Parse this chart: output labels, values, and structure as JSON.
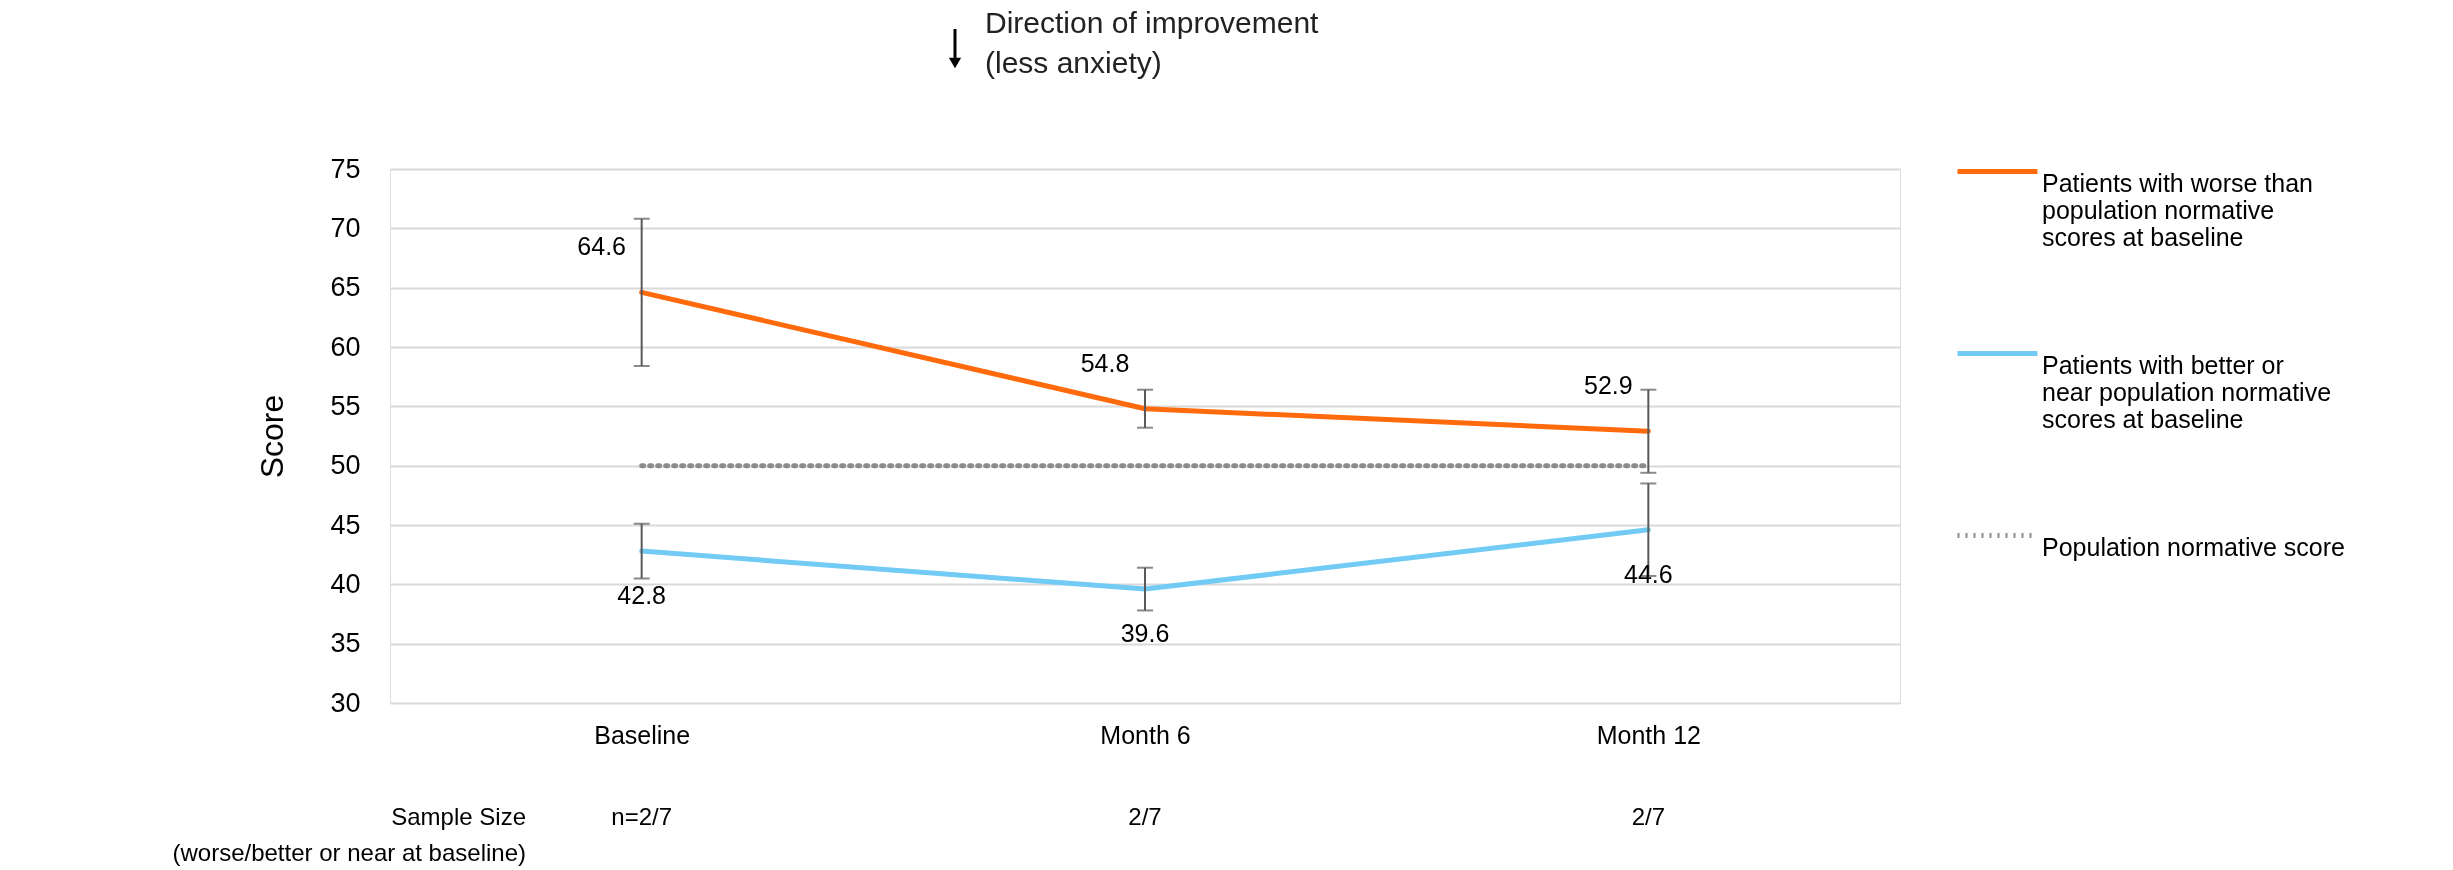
{
  "chart_data": {
    "type": "line",
    "title": "Direction of improvement (less anxiety)",
    "ylabel": "Score",
    "categories": [
      "Baseline",
      "Month 6",
      "Month 12"
    ],
    "series": [
      {
        "name": "Patients with worse than population normative scores at baseline",
        "color": "#ff6a0d",
        "values": [
          64.6,
          54.8,
          52.9
        ],
        "errors": [
          [
            58.4,
            70.8
          ],
          [
            53.2,
            56.4
          ],
          [
            49.4,
            56.4
          ]
        ],
        "value_labels": [
          "64.6",
          "54.8",
          "52.9"
        ],
        "line_style": "solid"
      },
      {
        "name": "Patients with better or near population normative scores at baseline",
        "color": "#71cbf4",
        "values": [
          42.8,
          39.6,
          44.6
        ],
        "errors": [
          [
            40.5,
            45.1
          ],
          [
            37.8,
            41.4
          ],
          [
            40.7,
            48.5
          ]
        ],
        "value_labels": [
          "42.8",
          "39.6",
          "44.6"
        ],
        "line_style": "solid"
      },
      {
        "name": "Population normative score",
        "color": "#8c8c8c",
        "values": [
          50,
          50,
          50
        ],
        "line_style": "dotted"
      }
    ],
    "ylim": [
      30,
      75
    ],
    "yticks": [
      30,
      35,
      40,
      45,
      50,
      55,
      60,
      65,
      70,
      75
    ],
    "grid": "y",
    "legend": "right",
    "marker": "none",
    "annotations": [
      "Sample Size",
      "(worse/better or near at baseline)",
      "n=2/7",
      "2/7",
      "2/7"
    ]
  }
}
